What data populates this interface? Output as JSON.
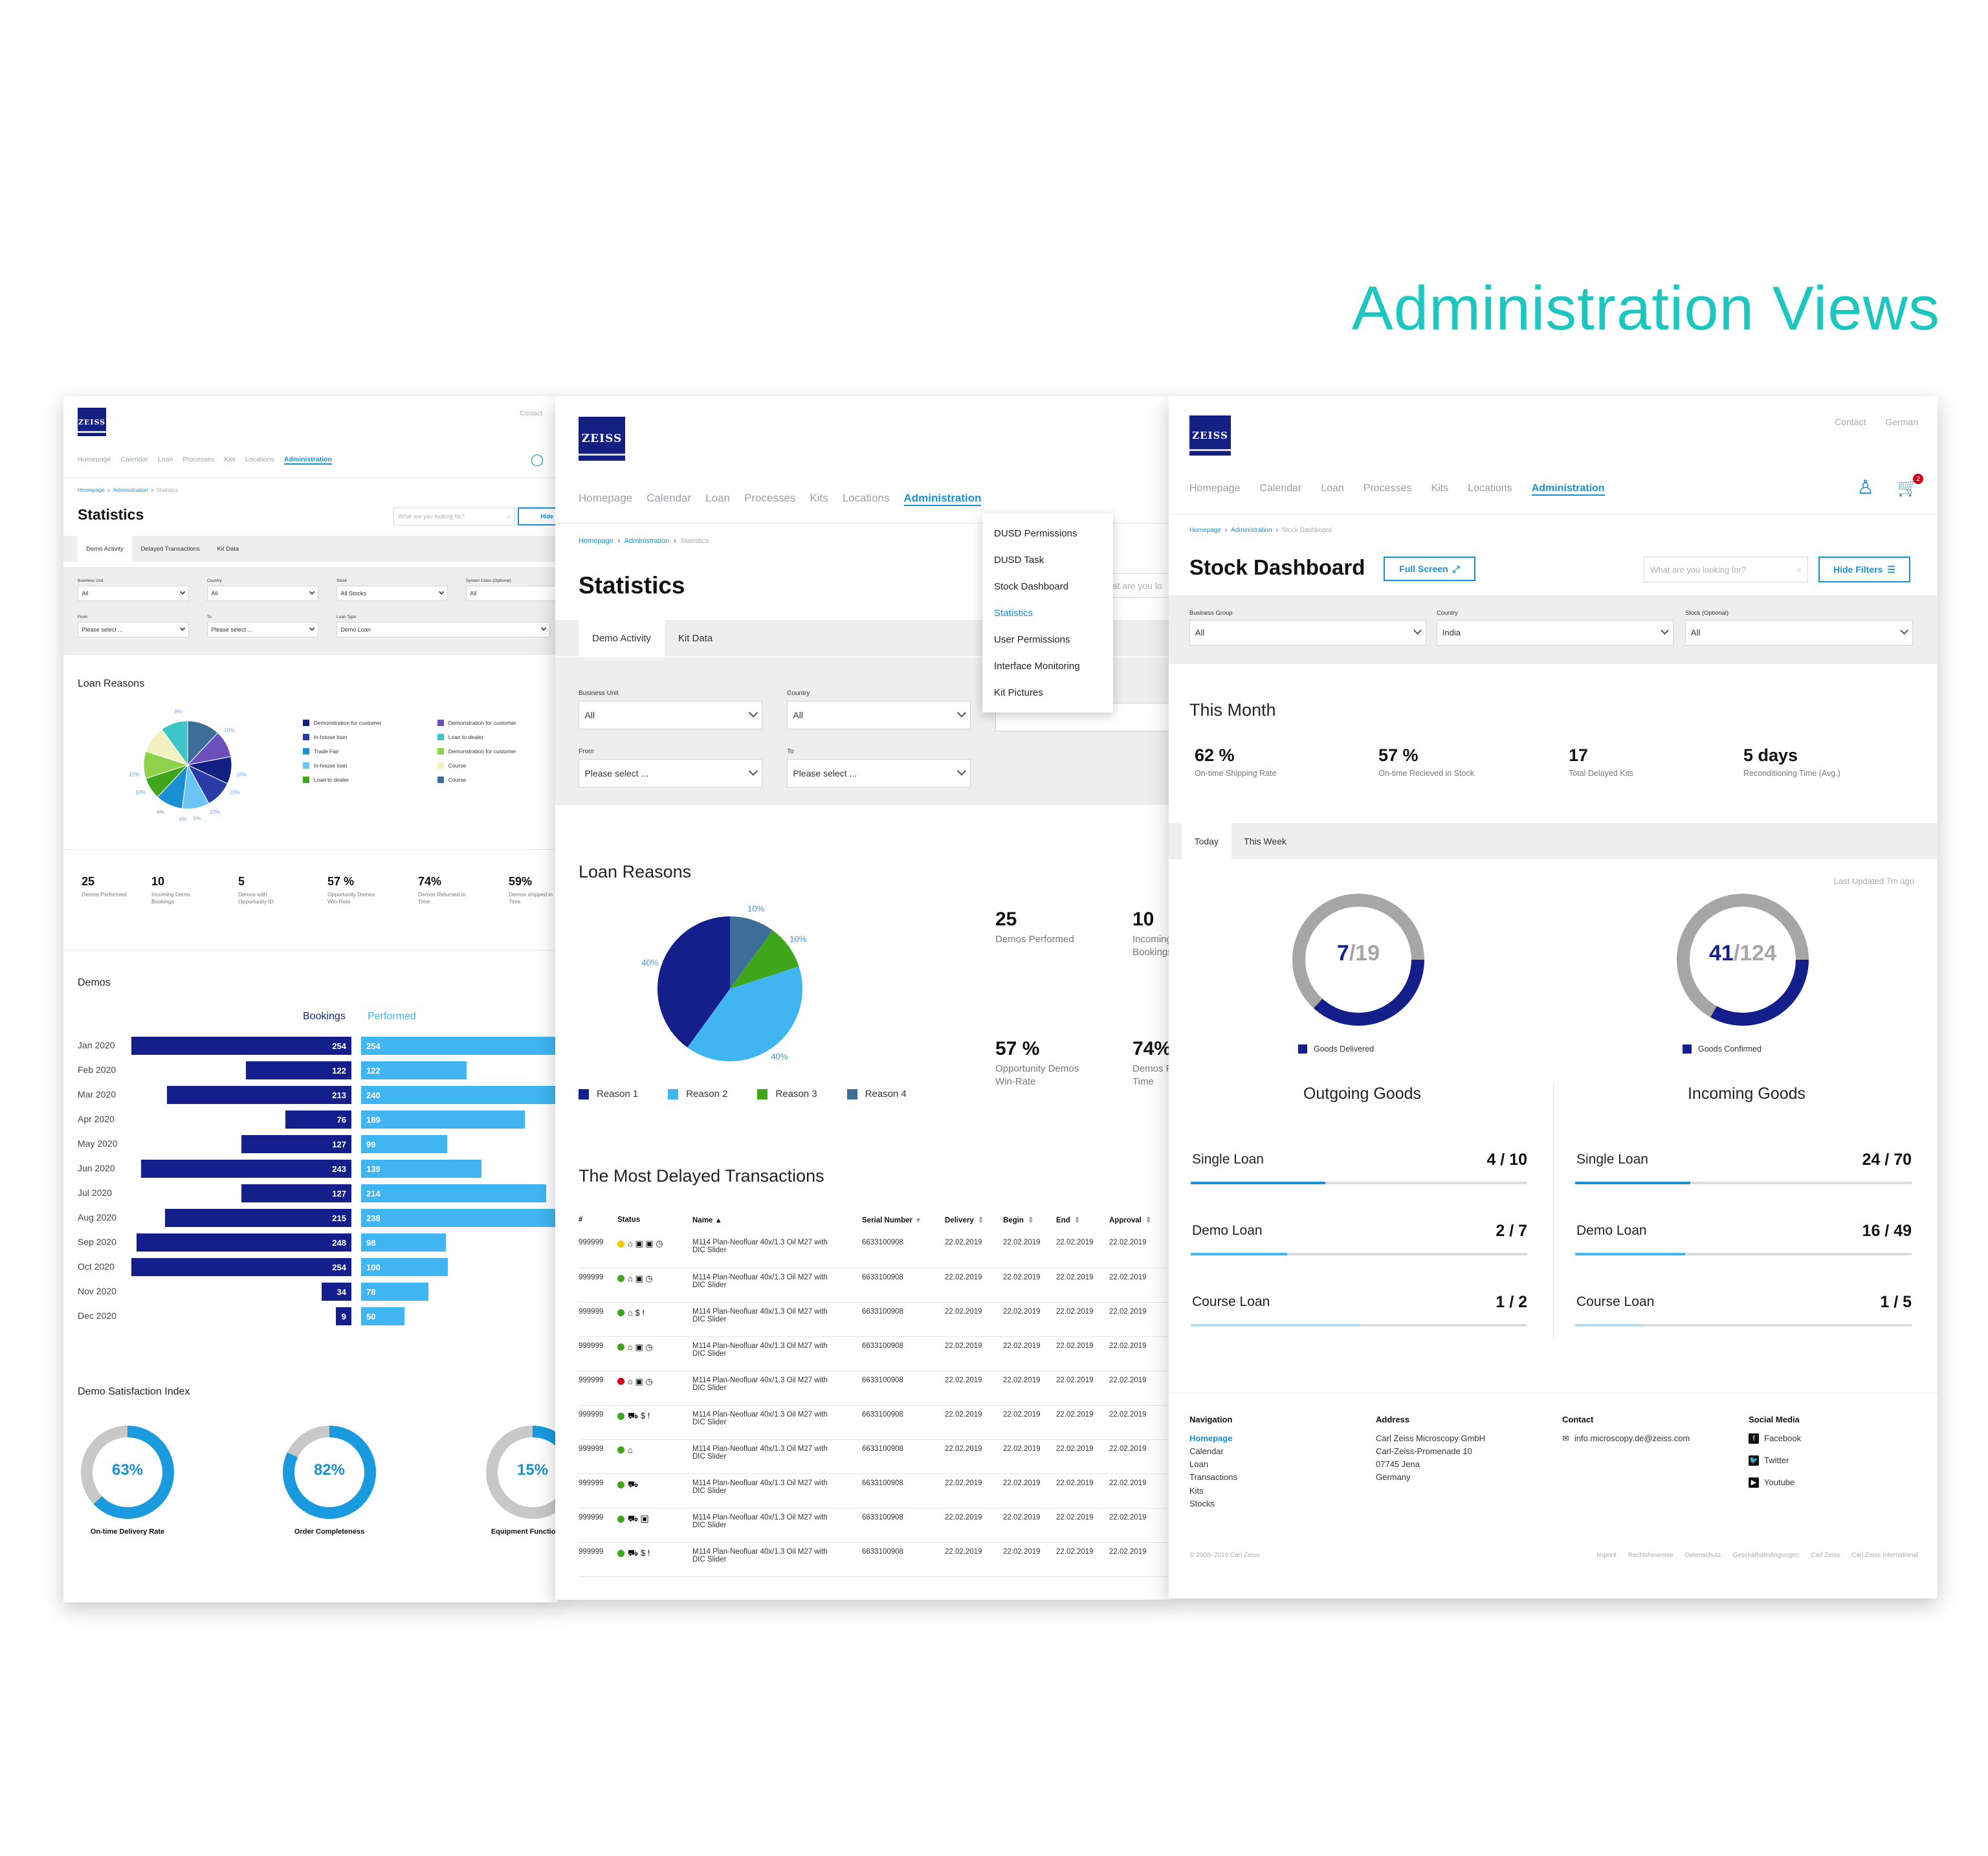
{
  "page_title": "Administration Views",
  "nav_items": [
    "Homepage",
    "Calendar",
    "Loan",
    "Processes",
    "Kits",
    "Locations",
    "Administration"
  ],
  "logo_text": "ZEISS",
  "panel_a": {
    "contact": "Contact",
    "breadcrumb": [
      "Homepage",
      "Administration",
      "Statistics"
    ],
    "title": "Statistics",
    "search_placeholder": "What are you looking for?",
    "hide_filters": "Hide Filters",
    "tabs": [
      "Demo Activity",
      "Delayed Transactions",
      "Kit Data"
    ],
    "filters": [
      {
        "label": "Business Unit",
        "value": "All"
      },
      {
        "label": "Country",
        "value": "All"
      },
      {
        "label": "Stock",
        "value": "All Stocks"
      },
      {
        "label": "System Class (Optional)",
        "value": "All"
      },
      {
        "label": "From",
        "value": "Please select ..."
      },
      {
        "label": "To",
        "value": "Please select ..."
      },
      {
        "label": "Loan Type",
        "value": "Demo Loan"
      }
    ],
    "loan_reasons_title": "Loan Reasons",
    "pie_labels": [
      "8%",
      "10%",
      "12%",
      "10%",
      "10%",
      "10%",
      "10%",
      "4%",
      "4%",
      "5%"
    ],
    "legend": [
      {
        "label": "Demonstration for customer",
        "color": "#141f82"
      },
      {
        "label": "Demonstration for customer",
        "color": "#6b4fbb"
      },
      {
        "label": "In-house loan",
        "color": "#2a3ca8"
      },
      {
        "label": "Loan to dealer",
        "color": "#3ec6c6"
      },
      {
        "label": "Trade Fair",
        "color": "#1a8fd1"
      },
      {
        "label": "Demonstration for customer",
        "color": "#8ed14a"
      },
      {
        "label": "In-house loan",
        "color": "#6cc4f2"
      },
      {
        "label": "Course",
        "color": "#f3f0c0"
      },
      {
        "label": "Loan to dealer",
        "color": "#3fa51a"
      },
      {
        "label": "Course",
        "color": "#3d6e9a"
      }
    ],
    "kpis": [
      {
        "value": "25",
        "label": "Demos Performed"
      },
      {
        "value": "10",
        "label": "Incoming Demo Bookings"
      },
      {
        "value": "5",
        "label": "Demos with Opportunity ID"
      },
      {
        "value": "57 %",
        "label": "Opportunity Demos Win-Rate"
      },
      {
        "value": "74%",
        "label": "Demos Returned in Time"
      },
      {
        "value": "59%",
        "label": "Demos shipped in Time"
      }
    ],
    "demos_title": "Demos",
    "series_labels": [
      "Bookings",
      "Performed"
    ],
    "demos": [
      {
        "month": "Jan 2020",
        "bookings": "254",
        "performed": "254"
      },
      {
        "month": "Feb 2020",
        "bookings": "122",
        "performed": "122"
      },
      {
        "month": "Mar 2020",
        "bookings": "213",
        "performed": "240"
      },
      {
        "month": "Apr 2020",
        "bookings": "76",
        "performed": "189"
      },
      {
        "month": "May 2020",
        "bookings": "127",
        "performed": "99"
      },
      {
        "month": "Jun 2020",
        "bookings": "243",
        "performed": "139"
      },
      {
        "month": "Jul 2020",
        "bookings": "127",
        "performed": "214"
      },
      {
        "month": "Aug 2020",
        "bookings": "215",
        "performed": "238"
      },
      {
        "month": "Sep 2020",
        "bookings": "248",
        "performed": "98"
      },
      {
        "month": "Oct 2020",
        "bookings": "254",
        "performed": "100"
      },
      {
        "month": "Nov 2020",
        "bookings": "34",
        "performed": "78"
      },
      {
        "month": "Dec 2020",
        "bookings": "9",
        "performed": "50"
      }
    ],
    "satisfaction_title": "Demo Satisfaction Index",
    "satisfaction": [
      {
        "value": "63%",
        "pct": 63,
        "label": "On-time Delivery Rate"
      },
      {
        "value": "82%",
        "pct": 82,
        "label": "Order Completeness"
      },
      {
        "value": "15%",
        "pct": 15,
        "label": "Equipment Functionality"
      }
    ]
  },
  "panel_b": {
    "breadcrumb": [
      "Homepage",
      "Administration",
      "Statistics"
    ],
    "title": "Statistics",
    "search_partial": "at are you lo",
    "tabs": [
      "Demo Activity",
      "Kit Data"
    ],
    "admin_menu": [
      "DUSD Permissions",
      "DUSD Task",
      "Stock Dashboard",
      "Statistics",
      "User Permissions",
      "Interface Monitoring",
      "Kit Pictures"
    ],
    "admin_menu_active": "Statistics",
    "filters": [
      {
        "label": "Business Unit",
        "value": "All"
      },
      {
        "label": "Country",
        "value": "All"
      },
      {
        "label": "From",
        "value": "Please select ..."
      },
      {
        "label": "To",
        "value": "Please select ..."
      }
    ],
    "loan_reasons_title": "Loan Reasons",
    "pie": [
      {
        "label": "Reason 1",
        "value": 40,
        "text": "40%",
        "color": "#141f8c"
      },
      {
        "label": "Reason 2",
        "value": 40,
        "text": "40%",
        "color": "#3fb6f2"
      },
      {
        "label": "Reason 3",
        "value": 10,
        "text": "10%",
        "color": "#3fa51a"
      },
      {
        "label": "Reason 4",
        "value": 10,
        "text": "10%",
        "color": "#3d6e9a"
      }
    ],
    "kpis": [
      {
        "value": "25",
        "label": "Demos Performed"
      },
      {
        "value": "10",
        "label": "Incoming Demo Bookings"
      },
      {
        "value": "57 %",
        "label": "Opportunity Demos Win-Rate"
      },
      {
        "value": "74%",
        "label": "Demos Returned in Time"
      }
    ],
    "delayed_title": "The Most Delayed Transactions",
    "table_headers": [
      "#",
      "Status",
      "Name",
      "Serial Number",
      "Delivery",
      "Begin",
      "End",
      "Approval"
    ],
    "rows": [
      {
        "id": "999999",
        "dot": "#f2c500",
        "icons": "⌂ ▣ ▣ ◷",
        "name1": "M114 Plan-Neofluar 40x/1.3 Oil M27 with",
        "name2": "DIC Slider",
        "serial": "6633100908",
        "delivery": "22.02.2019",
        "begin": "22.02.2019",
        "end": "22.02.2019",
        "approval": "22.02.2019"
      },
      {
        "id": "999999",
        "dot": "#3fa51a",
        "icons": "⌂ ▣ ◷",
        "name1": "M114 Plan-Neofluar 40x/1.3 Oil M27 with",
        "name2": "DIC Slider",
        "serial": "6633100908",
        "delivery": "22.02.2019",
        "begin": "22.02.2019",
        "end": "22.02.2019",
        "approval": "22.02.2019"
      },
      {
        "id": "999999",
        "dot": "#3fa51a",
        "icons": "⌂ $ !",
        "name1": "M114 Plan-Neofluar 40x/1.3 Oil M27 with",
        "name2": "DIC Slider",
        "serial": "6633100908",
        "delivery": "22.02.2019",
        "begin": "22.02.2019",
        "end": "22.02.2019",
        "approval": "22.02.2019"
      },
      {
        "id": "999999",
        "dot": "#3fa51a",
        "icons": "⌂ ▣ ◷",
        "name1": "M114 Plan-Neofluar 40x/1.3 Oil M27 with",
        "name2": "DIC Slider",
        "serial": "6633100908",
        "delivery": "22.02.2019",
        "begin": "22.02.2019",
        "end": "22.02.2019",
        "approval": "22.02.2019"
      },
      {
        "id": "999999",
        "dot": "#d0021b",
        "icons": "⌂ ▣ ◷",
        "name1": "M114 Plan-Neofluar 40x/1.3 Oil M27 with",
        "name2": "DIC Slider",
        "serial": "6633100908",
        "delivery": "22.02.2019",
        "begin": "22.02.2019",
        "end": "22.02.2019",
        "approval": "22.02.2019"
      },
      {
        "id": "999999",
        "dot": "#3fa51a",
        "icons": "⛟ $ !",
        "name1": "M114 Plan-Neofluar 40x/1.3 Oil M27 with",
        "name2": "DIC Slider",
        "serial": "6633100908",
        "delivery": "22.02.2019",
        "begin": "22.02.2019",
        "end": "22.02.2019",
        "approval": "22.02.2019"
      },
      {
        "id": "999999",
        "dot": "#3fa51a",
        "icons": "⌂",
        "name1": "M114 Plan-Neofluar 40x/1.3 Oil M27 with",
        "name2": "DIC Slider",
        "serial": "6633100908",
        "delivery": "22.02.2019",
        "begin": "22.02.2019",
        "end": "22.02.2019",
        "approval": "22.02.2019"
      },
      {
        "id": "999999",
        "dot": "#3fa51a",
        "icons": "⛟",
        "name1": "M114 Plan-Neofluar 40x/1.3 Oil M27 with",
        "name2": "DIC Slider",
        "serial": "6633100908",
        "delivery": "22.02.2019",
        "begin": "22.02.2019",
        "end": "22.02.2019",
        "approval": "22.02.2019"
      },
      {
        "id": "999999",
        "dot": "#3fa51a",
        "icons": "⛟ ▣",
        "name1": "M114 Plan-Neofluar 40x/1.3 Oil M27 with",
        "name2": "DIC Slider",
        "serial": "6633100908",
        "delivery": "22.02.2019",
        "begin": "22.02.2019",
        "end": "22.02.2019",
        "approval": "22.02.2019"
      },
      {
        "id": "999999",
        "dot": "#3fa51a",
        "icons": "⛟ $ !",
        "name1": "M114 Plan-Neofluar 40x/1.3 Oil M27 with",
        "name2": "DIC Slider",
        "serial": "6633100908",
        "delivery": "22.02.2019",
        "begin": "22.02.2019",
        "end": "22.02.2019",
        "approval": "22.02.2019"
      }
    ]
  },
  "panel_c": {
    "top_links": [
      "Contact",
      "German"
    ],
    "cart_count": "2",
    "breadcrumb": [
      "Homepage",
      "Administration",
      "Stock Dashboard"
    ],
    "title": "Stock Dashboard",
    "full_screen": "Full Screen",
    "search_placeholder": "What are you looking for?",
    "hide_filters": "Hide Filters",
    "filters": [
      {
        "label": "Business Group",
        "value": "All"
      },
      {
        "label": "Country",
        "value": "India"
      },
      {
        "label": "Stock (Optional)",
        "value": "All"
      }
    ],
    "this_month_title": "This Month",
    "kpis": [
      {
        "value": "62 %",
        "label": "On-time Shipping Rate"
      },
      {
        "value": "57 %",
        "label": "On-time Recieved in Stock"
      },
      {
        "value": "17",
        "label": "Total Delayed Kits"
      },
      {
        "value": "5 days",
        "label": "Reconditioning Time (Avg.)"
      }
    ],
    "tabs": [
      "Today",
      "This Week"
    ],
    "last_updated": "Last Updated 7m ago",
    "outgoing": {
      "done": "7",
      "total": "/19",
      "frac": 0.368,
      "legend": "Goods Delivered",
      "title": "Outgoing Goods",
      "rows": [
        {
          "label": "Single Loan",
          "value": "4 / 10",
          "frac": 0.4,
          "color": "#1a8fd1"
        },
        {
          "label": "Demo Loan",
          "value": "2 / 7",
          "frac": 0.286,
          "color": "#3fb6f2"
        },
        {
          "label": "Course Loan",
          "value": "1 / 2",
          "frac": 0.5,
          "color": "#b6dcf5"
        }
      ]
    },
    "incoming": {
      "done": "41",
      "total": "/124",
      "frac": 0.331,
      "legend": "Goods Confirmed",
      "title": "Incoming Goods",
      "rows": [
        {
          "label": "Single Loan",
          "value": "24 / 70",
          "frac": 0.343,
          "color": "#1a8fd1"
        },
        {
          "label": "Demo Loan",
          "value": "16 / 49",
          "frac": 0.327,
          "color": "#3fb6f2"
        },
        {
          "label": "Course Loan",
          "value": "1 / 5",
          "frac": 0.2,
          "color": "#b6dcf5"
        }
      ]
    },
    "footer": {
      "navigation": {
        "title": "Navigation",
        "items": [
          "Homepage",
          "Calendar",
          "Loan",
          "Transactions",
          "Kits",
          "Stocks"
        ]
      },
      "address": {
        "title": "Address",
        "items": [
          "Carl Zeiss Microscopy GmbH",
          "Carl-Zeiss-Promenade 10",
          "07745 Jena",
          "Germany"
        ]
      },
      "contact": {
        "title": "Contact",
        "email": "info.microscopy.de@zeiss.com"
      },
      "social": {
        "title": "Social Media",
        "items": [
          "Facebook",
          "Twitter",
          "Youtube"
        ]
      },
      "copyright": "© 2006–2019 Carl Zeiss",
      "legal": [
        "Imprint",
        "Rechtshinweise",
        "Datenschutz",
        "Geschäftsbedingungen",
        "Carl Zeiss",
        "Carl Zeiss International"
      ]
    }
  },
  "colors": {
    "accent": "#1a8fd1",
    "brand_dark": "#141f82",
    "title_teal": "#1ec6c0"
  }
}
